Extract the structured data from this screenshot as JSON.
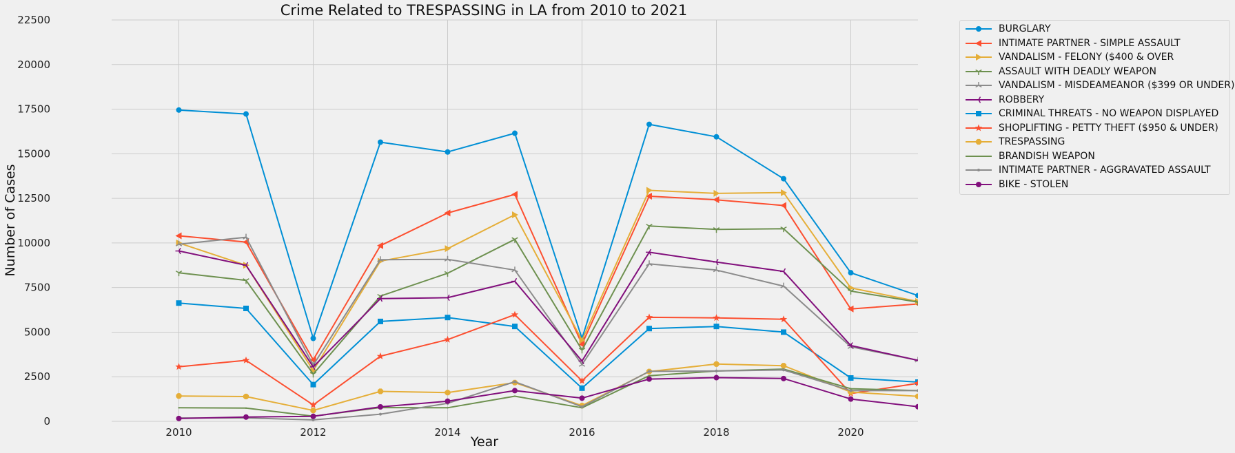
{
  "chart_data": {
    "type": "line",
    "title": "Crime Related to TRESPASSING in LA from 2010 to 2021",
    "xlabel": "Year",
    "ylabel": "Number of Cases",
    "xlim": [
      2009,
      2021
    ],
    "ylim": [
      0,
      22500
    ],
    "x_ticks": [
      "2010",
      "2012",
      "2014",
      "2016",
      "2018",
      "2020"
    ],
    "y_ticks": [
      "0",
      "2500",
      "5000",
      "7500",
      "10000",
      "12500",
      "15000",
      "17500",
      "20000",
      "22500"
    ],
    "grid": true,
    "legend_placement": "outside-upper-right",
    "x": [
      2010,
      2011,
      2012,
      2013,
      2014,
      2015,
      2016,
      2017,
      2018,
      2019,
      2020,
      2021
    ],
    "series": [
      {
        "name": "BURGLARY",
        "color": "#008fd5",
        "marker": "circle",
        "values": [
          17450,
          17230,
          4650,
          15650,
          15100,
          16150,
          4650,
          16650,
          15950,
          13600,
          8330,
          7050
        ]
      },
      {
        "name": "INTIMATE PARTNER - SIMPLE ASSAULT",
        "color": "#fc4f30",
        "marker": "triangle-left",
        "values": [
          10400,
          10050,
          3450,
          9850,
          11680,
          12720,
          4320,
          12620,
          12420,
          12100,
          6300,
          6580
        ]
      },
      {
        "name": "VANDALISM - FELONY ($400 & OVER",
        "color": "#e5ae38",
        "marker": "triangle-right",
        "values": [
          10000,
          8750,
          2850,
          8980,
          9680,
          11580,
          4550,
          12950,
          12780,
          12820,
          7480,
          6720
        ]
      },
      {
        "name": "ASSAULT WITH DEADLY WEAPON",
        "color": "#6d904f",
        "marker": "tri-down",
        "values": [
          8330,
          7900,
          2650,
          7020,
          8300,
          10200,
          4000,
          10950,
          10760,
          10800,
          7300,
          6680
        ]
      },
      {
        "name": "VANDALISM - MISDEAMEANOR ($399 OR UNDER)",
        "color": "#8b8b8b",
        "marker": "tri-up",
        "values": [
          9930,
          10320,
          3150,
          9060,
          9080,
          8480,
          3180,
          8830,
          8480,
          7580,
          4180,
          3420
        ]
      },
      {
        "name": "ROBBERY",
        "color": "#810f7c",
        "marker": "tri-left",
        "values": [
          9550,
          8750,
          3050,
          6880,
          6930,
          7850,
          3380,
          9480,
          8930,
          8400,
          4250,
          3420
        ]
      },
      {
        "name": "CRIMINAL THREATS - NO WEAPON DISPLAYED",
        "color": "#008fd5",
        "marker": "square",
        "values": [
          6630,
          6330,
          2060,
          5600,
          5820,
          5320,
          1860,
          5200,
          5320,
          5000,
          2430,
          2200
        ]
      },
      {
        "name": "SHOPLIFTING - PETTY THEFT ($950 & UNDER)",
        "color": "#fc4f30",
        "marker": "star",
        "values": [
          3060,
          3420,
          920,
          3650,
          4580,
          5980,
          2270,
          5830,
          5800,
          5720,
          1560,
          2130
        ]
      },
      {
        "name": "TRESPASSING",
        "color": "#e5ae38",
        "marker": "octagon",
        "values": [
          1420,
          1390,
          610,
          1680,
          1610,
          2170,
          880,
          2790,
          3210,
          3120,
          1640,
          1400
        ]
      },
      {
        "name": "BRANDISH WEAPON",
        "color": "#6d904f",
        "marker": "pixel",
        "values": [
          760,
          740,
          290,
          770,
          760,
          1410,
          760,
          2560,
          2820,
          2930,
          1830,
          1720
        ]
      },
      {
        "name": "INTIMATE PARTNER - AGGRAVATED ASSAULT",
        "color": "#8b8b8b",
        "marker": "point",
        "values": [
          190,
          190,
          80,
          400,
          1010,
          2220,
          820,
          2800,
          2820,
          2880,
          1720,
          1720
        ]
      },
      {
        "name": "BIKE - STOLEN",
        "color": "#810f7c",
        "marker": "circle",
        "values": [
          160,
          240,
          280,
          810,
          1130,
          1720,
          1300,
          2370,
          2450,
          2400,
          1250,
          820
        ]
      }
    ]
  }
}
